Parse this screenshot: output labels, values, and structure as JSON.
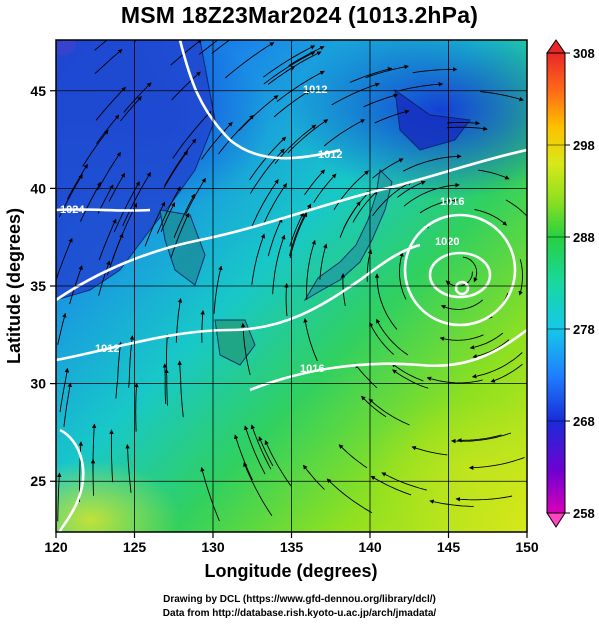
{
  "title": "MSM 18Z23Mar2024 (1013.2hPa)",
  "x_axis": {
    "label": "Longitude (degrees)",
    "ticks": [
      120,
      125,
      130,
      135,
      140,
      145,
      150
    ],
    "range": [
      120,
      150
    ]
  },
  "y_axis": {
    "label": "Latitude  (degrees)",
    "ticks": [
      25,
      30,
      35,
      40,
      45
    ],
    "range": [
      22.4,
      47.6
    ]
  },
  "colorbar": {
    "ticks": [
      258,
      268,
      278,
      288,
      298,
      308
    ],
    "range": [
      258,
      308
    ],
    "colors": [
      "#d800b8",
      "#7000d0",
      "#1a2cd8",
      "#1e80ff",
      "#16c8e8",
      "#18d8a0",
      "#28d040",
      "#8ee020",
      "#d8e818",
      "#ffc000",
      "#ff6818",
      "#e82828"
    ]
  },
  "credits": {
    "line1": "Drawing by DCL (https://www.gfd-dennou.org/library/dcl/)",
    "line2": "Data from http://database.rish.kyoto-u.ac.jp/arch/jmadata/"
  },
  "contour_labels": [
    "1012",
    "1024",
    "1012",
    "1016",
    "1020",
    "1016",
    "1012"
  ]
}
